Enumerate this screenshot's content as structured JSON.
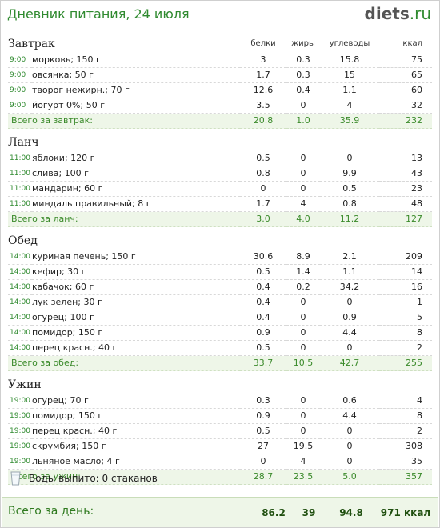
{
  "header": {
    "title": "Дневник питания, 24 июля",
    "logo_main": "diets",
    "logo_tld": ".ru"
  },
  "columns": {
    "protein": "белки",
    "fat": "жиры",
    "carbs": "углеводы",
    "kcal": "ккал"
  },
  "meals": [
    {
      "name": "Завтрак",
      "items": [
        {
          "time": "9:00",
          "food": "морковь; 150 г",
          "protein": "3",
          "fat": "0.3",
          "carbs": "15.8",
          "kcal": "75"
        },
        {
          "time": "9:00",
          "food": "овсянка; 50 г",
          "protein": "1.7",
          "fat": "0.3",
          "carbs": "15",
          "kcal": "65"
        },
        {
          "time": "9:00",
          "food": "творог нежирн.; 70 г",
          "protein": "12.6",
          "fat": "0.4",
          "carbs": "1.1",
          "kcal": "60"
        },
        {
          "time": "9:00",
          "food": "йогурт 0%; 50 г",
          "protein": "3.5",
          "fat": "0",
          "carbs": "4",
          "kcal": "32"
        }
      ],
      "total": {
        "label": "Всего за завтрак:",
        "protein": "20.8",
        "fat": "1.0",
        "carbs": "35.9",
        "kcal": "232"
      }
    },
    {
      "name": "Ланч",
      "items": [
        {
          "time": "11:00",
          "food": "яблоки; 120 г",
          "protein": "0.5",
          "fat": "0",
          "carbs": "0",
          "kcal": "13"
        },
        {
          "time": "11:00",
          "food": "слива; 100 г",
          "protein": "0.8",
          "fat": "0",
          "carbs": "9.9",
          "kcal": "43"
        },
        {
          "time": "11:00",
          "food": "мандарин; 60 г",
          "protein": "0",
          "fat": "0",
          "carbs": "0.5",
          "kcal": "23"
        },
        {
          "time": "11:00",
          "food": "миндаль правильный; 8 г",
          "protein": "1.7",
          "fat": "4",
          "carbs": "0.8",
          "kcal": "48"
        }
      ],
      "total": {
        "label": "Всего за ланч:",
        "protein": "3.0",
        "fat": "4.0",
        "carbs": "11.2",
        "kcal": "127"
      }
    },
    {
      "name": "Обед",
      "items": [
        {
          "time": "14:00",
          "food": "куриная печень; 150 г",
          "protein": "30.6",
          "fat": "8.9",
          "carbs": "2.1",
          "kcal": "209"
        },
        {
          "time": "14:00",
          "food": "кефир; 30 г",
          "protein": "0.5",
          "fat": "1.4",
          "carbs": "1.1",
          "kcal": "14"
        },
        {
          "time": "14:00",
          "food": "кабачок; 60 г",
          "protein": "0.4",
          "fat": "0.2",
          "carbs": "34.2",
          "kcal": "16"
        },
        {
          "time": "14:00",
          "food": "лук зелен; 30 г",
          "protein": "0.4",
          "fat": "0",
          "carbs": "0",
          "kcal": "1"
        },
        {
          "time": "14:00",
          "food": "огурец; 100 г",
          "protein": "0.4",
          "fat": "0",
          "carbs": "0.9",
          "kcal": "5"
        },
        {
          "time": "14:00",
          "food": "помидор; 150 г",
          "protein": "0.9",
          "fat": "0",
          "carbs": "4.4",
          "kcal": "8"
        },
        {
          "time": "14:00",
          "food": "перец красн.; 40 г",
          "protein": "0.5",
          "fat": "0",
          "carbs": "0",
          "kcal": "2"
        }
      ],
      "total": {
        "label": "Всего за обед:",
        "protein": "33.7",
        "fat": "10.5",
        "carbs": "42.7",
        "kcal": "255"
      }
    },
    {
      "name": "Ужин",
      "items": [
        {
          "time": "19:00",
          "food": "огурец; 70 г",
          "protein": "0.3",
          "fat": "0",
          "carbs": "0.6",
          "kcal": "4"
        },
        {
          "time": "19:00",
          "food": "помидор; 150 г",
          "protein": "0.9",
          "fat": "0",
          "carbs": "4.4",
          "kcal": "8"
        },
        {
          "time": "19:00",
          "food": "перец красн.; 40 г",
          "protein": "0.5",
          "fat": "0",
          "carbs": "0",
          "kcal": "2"
        },
        {
          "time": "19:00",
          "food": "скрумбия; 150 г",
          "protein": "27",
          "fat": "19.5",
          "carbs": "0",
          "kcal": "308"
        },
        {
          "time": "19:00",
          "food": "льняное масло; 4 г",
          "protein": "0",
          "fat": "4",
          "carbs": "0",
          "kcal": "35"
        }
      ],
      "total": {
        "label": "Всего за ужин:",
        "protein": "28.7",
        "fat": "23.5",
        "carbs": "5.0",
        "kcal": "357"
      }
    }
  ],
  "water": {
    "label": "Воды выпито: 0 стаканов"
  },
  "day_total": {
    "label": "Всего за день:",
    "protein": "86.2",
    "fat": "39",
    "carbs": "94.8",
    "kcal": "971 ккал"
  },
  "colors": {
    "accent_green": "#2f8a2f",
    "total_bg": "#eef6e8"
  }
}
